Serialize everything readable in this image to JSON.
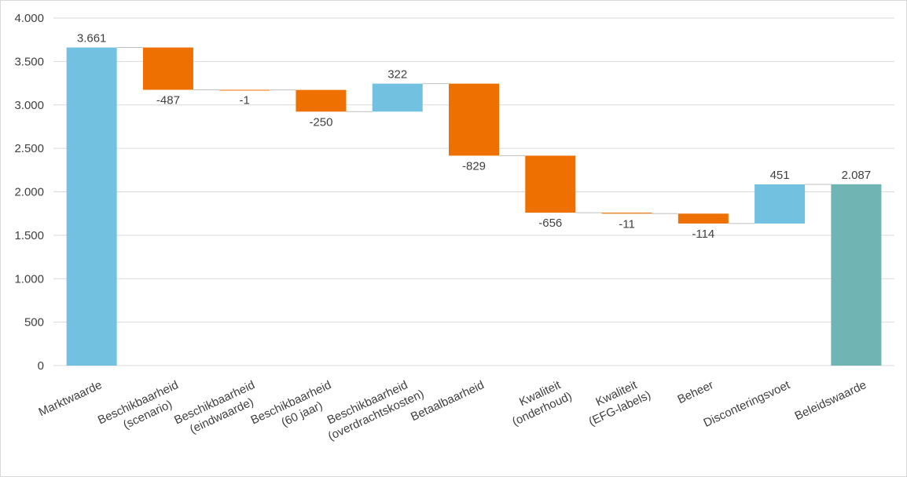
{
  "chart_data": {
    "type": "waterfall",
    "categories": [
      [
        "Marktwaarde"
      ],
      [
        "Beschikbaarheid",
        "(scenario)"
      ],
      [
        "Beschikbaarheid",
        "(eindwaarde)"
      ],
      [
        "Beschikbaarheid",
        "(60 jaar)"
      ],
      [
        "Beschikbaarheid",
        "(overdrachtskosten)"
      ],
      [
        "Betaalbaarheid"
      ],
      [
        "Kwaliteit",
        "(onderhoud)"
      ],
      [
        "Kwaliteit",
        "(EFG-labels)"
      ],
      [
        "Beheer"
      ],
      [
        "Disconteringsvoet"
      ],
      [
        "Beleidswaarde"
      ]
    ],
    "values": [
      3661,
      -487,
      -1,
      -250,
      322,
      -829,
      -656,
      -11,
      -114,
      451,
      2087
    ],
    "value_labels": [
      "3.661",
      "-487",
      "-1",
      "-250",
      "322",
      "-829",
      "-656",
      "-11",
      "-114",
      "451",
      "2.087"
    ],
    "measure": [
      "absolute",
      "relative",
      "relative",
      "relative",
      "relative",
      "relative",
      "relative",
      "relative",
      "relative",
      "relative",
      "total"
    ],
    "colors": {
      "absolute": "#72c1e0",
      "increase": "#72c1e0",
      "decrease": "#ed7000",
      "total": "#70b4b4"
    },
    "ylim": [
      0,
      4000
    ],
    "yticks": [
      0,
      500,
      {
        "value": 1000,
        "label": "1.000"
      },
      {
        "value": 1500,
        "label": "1.500"
      },
      {
        "value": 2000,
        "label": "2.000"
      },
      {
        "value": 2500,
        "label": "2.500"
      },
      {
        "value": 3000,
        "label": "3.000"
      },
      {
        "value": 3500,
        "label": "3.500"
      },
      {
        "value": 4000,
        "label": "4.000"
      }
    ],
    "grid": true
  }
}
